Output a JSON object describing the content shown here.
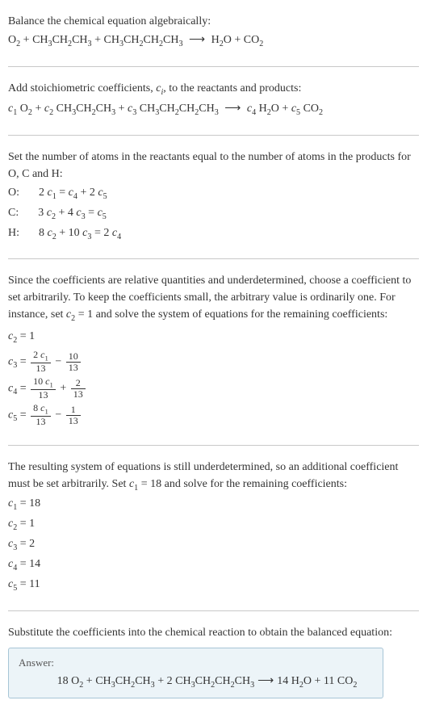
{
  "section1": {
    "heading": "Balance the chemical equation algebraically:",
    "equation_parts": {
      "r1": "O",
      "r1sub": "2",
      "r2a": "CH",
      "r2b": "3",
      "r2c": "CH",
      "r2d": "2",
      "r2e": "CH",
      "r2f": "3",
      "r3a": "CH",
      "r3b": "3",
      "r3c": "CH",
      "r3d": "2",
      "r3e": "CH",
      "r3f": "2",
      "r3g": "CH",
      "r3h": "3",
      "arrow": "⟶",
      "p1a": "H",
      "p1b": "2",
      "p1c": "O",
      "p2a": "CO",
      "p2b": "2"
    }
  },
  "section2": {
    "heading_a": "Add stoichiometric coefficients, ",
    "heading_c": "c",
    "heading_ci": "i",
    "heading_b": ", to the reactants and products:",
    "c1": "c",
    "c1s": "1",
    "c2": "c",
    "c2s": "2",
    "c3": "c",
    "c3s": "3",
    "c4": "c",
    "c4s": "4",
    "c5": "c",
    "c5s": "5"
  },
  "section3": {
    "heading": "Set the number of atoms in the reactants equal to the number of atoms in the products for O, C and H:",
    "rows": [
      {
        "el": "O:",
        "lhs_a": "2 ",
        "lhs_c": "c",
        "lhs_cs": "1",
        "mid": " = ",
        "r1c": "c",
        "r1s": "4",
        "plus": " + 2 ",
        "r2c": "c",
        "r2s": "5"
      },
      {
        "el": "C:",
        "lhs_a": "3 ",
        "lhs_c": "c",
        "lhs_cs": "2",
        "plus1": " + 4 ",
        "m1c": "c",
        "m1s": "3",
        "mid": " = ",
        "r1c": "c",
        "r1s": "5"
      },
      {
        "el": "H:",
        "lhs_a": "8 ",
        "lhs_c": "c",
        "lhs_cs": "2",
        "plus1": " + 10 ",
        "m1c": "c",
        "m1s": "3",
        "mid": " = 2 ",
        "r1c": "c",
        "r1s": "4"
      }
    ]
  },
  "section4": {
    "heading_a": "Since the coefficients are relative quantities and underdetermined, choose a coefficient to set arbitrarily. To keep the coefficients small, the arbitrary value is ordinarily one. For instance, set ",
    "heading_c": "c",
    "heading_cs": "2",
    "heading_b": " = 1 and solve the system of equations for the remaining coefficients:",
    "rows": {
      "r1": {
        "lc": "c",
        "ls": "2",
        "eq": " = 1"
      },
      "r2": {
        "lc": "c",
        "ls": "3",
        "eq": " = ",
        "f1n_a": "2 ",
        "f1n_c": "c",
        "f1n_s": "1",
        "f1d": "13",
        "minus": " − ",
        "f2n": "10",
        "f2d": "13"
      },
      "r3": {
        "lc": "c",
        "ls": "4",
        "eq": " = ",
        "f1n_a": "10 ",
        "f1n_c": "c",
        "f1n_s": "1",
        "f1d": "13",
        "plus": " + ",
        "f2n": "2",
        "f2d": "13"
      },
      "r4": {
        "lc": "c",
        "ls": "5",
        "eq": " = ",
        "f1n_a": "8 ",
        "f1n_c": "c",
        "f1n_s": "1",
        "f1d": "13",
        "minus": " − ",
        "f2n": "1",
        "f2d": "13"
      }
    }
  },
  "section5": {
    "heading_a": "The resulting system of equations is still underdetermined, so an additional coefficient must be set arbitrarily. Set ",
    "heading_c": "c",
    "heading_cs": "1",
    "heading_b": " = 18 and solve for the remaining coefficients:",
    "rows": [
      {
        "c": "c",
        "s": "1",
        "v": " = 18"
      },
      {
        "c": "c",
        "s": "2",
        "v": " = 1"
      },
      {
        "c": "c",
        "s": "3",
        "v": " = 2"
      },
      {
        "c": "c",
        "s": "4",
        "v": " = 14"
      },
      {
        "c": "c",
        "s": "5",
        "v": " = 11"
      }
    ]
  },
  "section6": {
    "heading": "Substitute the coefficients into the chemical reaction to obtain the balanced equation:",
    "answer_label": "Answer:",
    "eq": {
      "c1": "18 ",
      "r1": "O",
      "r1s": "2",
      "plus1": " + ",
      "r2a": "CH",
      "r2b": "3",
      "r2c": "CH",
      "r2d": "2",
      "r2e": "CH",
      "r2f": "3",
      "plus2": " + 2 ",
      "r3a": "CH",
      "r3b": "3",
      "r3c": "CH",
      "r3d": "2",
      "r3e": "CH",
      "r3f": "2",
      "r3g": "CH",
      "r3h": "3",
      "arrow": " ⟶ ",
      "c4": "14 ",
      "p1a": "H",
      "p1b": "2",
      "p1c": "O",
      "plus3": " + 11 ",
      "p2a": "CO",
      "p2b": "2"
    }
  },
  "colors": {
    "text": "#333333",
    "sep": "#c8c8c8",
    "answer_bg": "#ecf4f8",
    "answer_border": "#a7c5d6"
  }
}
